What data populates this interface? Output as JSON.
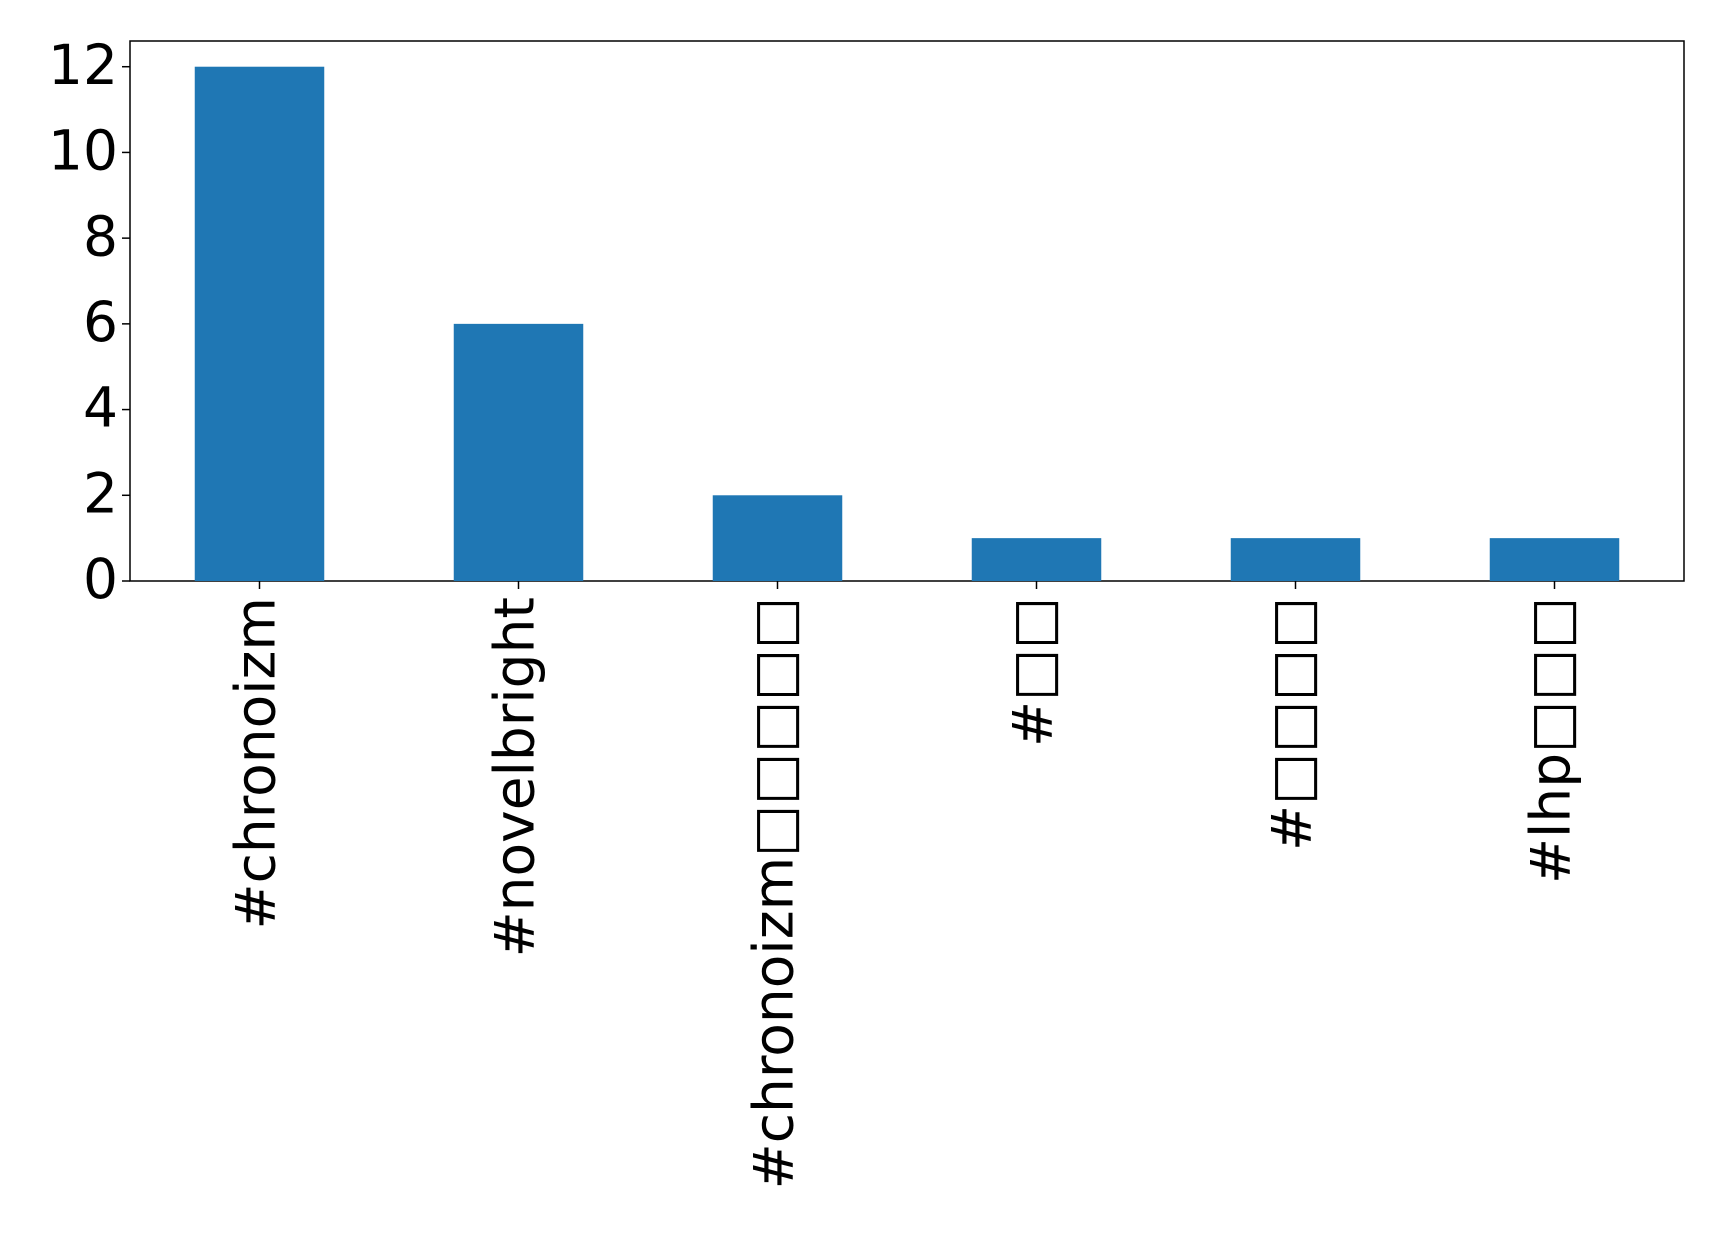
{
  "chart_data": {
    "type": "bar",
    "categories": [
      "#chronoizm",
      "#novelbright",
      "#chronoizm□□□□□",
      "#□□",
      "#□□□□",
      "#lhp□□□"
    ],
    "values": [
      12,
      6,
      2,
      1,
      1,
      1
    ],
    "color": "#1f77b4",
    "ylim": [
      0,
      12.6
    ],
    "yticks": [
      0,
      2,
      4,
      6,
      8,
      10,
      12
    ],
    "grid": false
  }
}
